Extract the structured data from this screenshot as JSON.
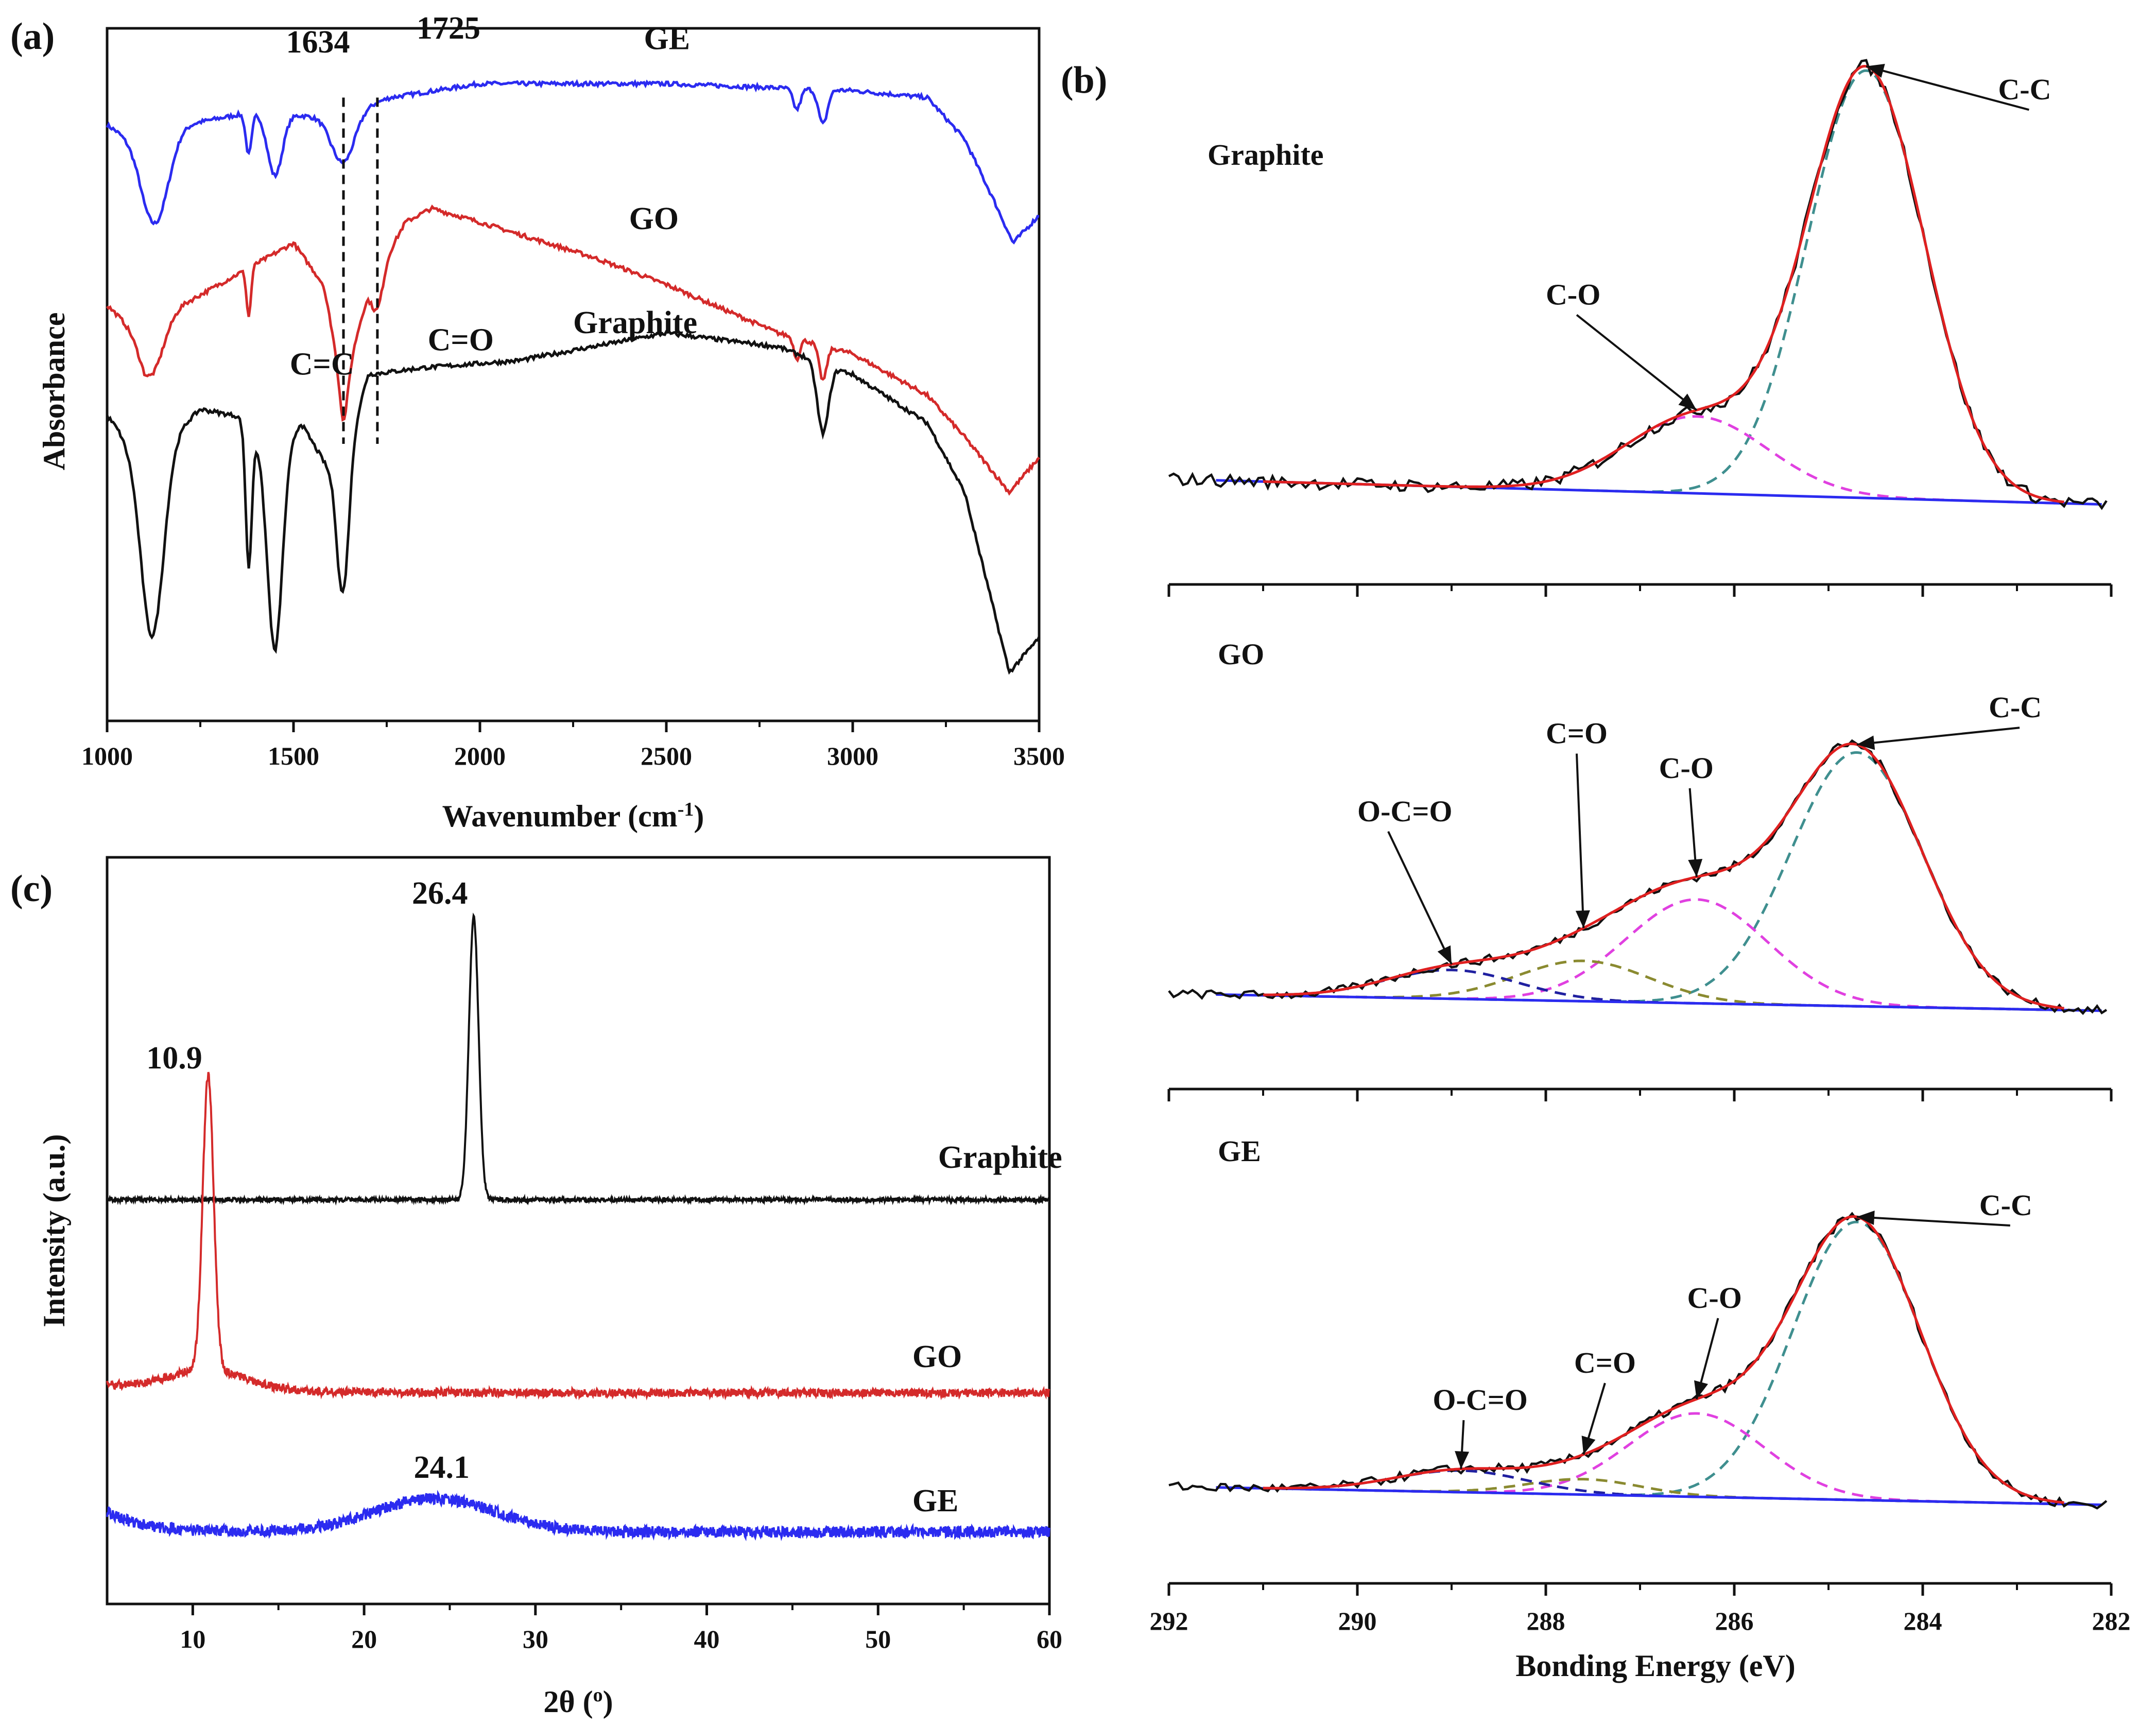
{
  "figure": {
    "panels": [
      "(a)",
      "(b)",
      "(c)"
    ]
  },
  "chart_data": [
    {
      "panel": "(a)",
      "type": "line",
      "xlabel": "Wavenumber (cm",
      "xlabel_sup": "-1",
      "xlabel_close": ")",
      "ylabel": "Absorbance",
      "xlim": [
        1000,
        3500
      ],
      "xticks": [
        "1000",
        "1500",
        "2000",
        "2500",
        "3000",
        "3500"
      ],
      "xtick_values": [
        1000,
        1500,
        2000,
        2500,
        3000,
        3500
      ],
      "series": [
        {
          "name": "GE",
          "color": "#2b2bf0",
          "label_x": 2440,
          "label_y": 0.97,
          "offset": 0.62,
          "baseline": [
            [
              1000,
              0.86
            ],
            [
              1100,
              0.83
            ],
            [
              1200,
              0.86
            ],
            [
              1400,
              0.88
            ],
            [
              1600,
              0.87
            ],
            [
              1760,
              0.9
            ],
            [
              2000,
              0.92
            ],
            [
              2500,
              0.92
            ],
            [
              3000,
              0.91
            ],
            [
              3200,
              0.9
            ],
            [
              3300,
              0.84
            ],
            [
              3380,
              0.75
            ],
            [
              3430,
              0.69
            ],
            [
              3500,
              0.73
            ]
          ],
          "bands": [
            [
              1130,
              0.12,
              35
            ],
            [
              1380,
              0.06,
              8
            ],
            [
              1450,
              0.09,
              20
            ],
            [
              1634,
              0.07,
              30
            ],
            [
              2850,
              0.03,
              10
            ],
            [
              2920,
              0.05,
              12
            ]
          ]
        },
        {
          "name": "GO",
          "color": "#d42a2a",
          "label_x": 2400,
          "label_y": 0.71,
          "offset": 0.31,
          "baseline": [
            [
              1000,
              0.6
            ],
            [
              1100,
              0.55
            ],
            [
              1200,
              0.6
            ],
            [
              1500,
              0.69
            ],
            [
              1580,
              0.63
            ],
            [
              1634,
              0.48
            ],
            [
              1700,
              0.62
            ],
            [
              1800,
              0.72
            ],
            [
              1870,
              0.74
            ],
            [
              2000,
              0.72
            ],
            [
              2300,
              0.67
            ],
            [
              2500,
              0.63
            ],
            [
              2800,
              0.56
            ],
            [
              3000,
              0.53
            ],
            [
              3200,
              0.47
            ],
            [
              3300,
              0.41
            ],
            [
              3420,
              0.33
            ],
            [
              3500,
              0.38
            ]
          ],
          "bands": [
            [
              1120,
              0.06,
              30
            ],
            [
              1380,
              0.07,
              6
            ],
            [
              1634,
              0.05,
              12
            ],
            [
              1725,
              0.05,
              15
            ],
            [
              2850,
              0.03,
              8
            ],
            [
              2920,
              0.05,
              10
            ]
          ]
        },
        {
          "name": "Graphite",
          "color": "#111111",
          "label_x": 2250,
          "label_y": 0.56,
          "offset": 0.0,
          "baseline": [
            [
              1000,
              0.44
            ],
            [
              1050,
              0.41
            ],
            [
              1150,
              0.4
            ],
            [
              1250,
              0.45
            ],
            [
              1350,
              0.44
            ],
            [
              1450,
              0.38
            ],
            [
              1520,
              0.43
            ],
            [
              1620,
              0.34
            ],
            [
              1700,
              0.5
            ],
            [
              1850,
              0.51
            ],
            [
              2100,
              0.52
            ],
            [
              2500,
              0.56
            ],
            [
              2800,
              0.54
            ],
            [
              3000,
              0.5
            ],
            [
              3200,
              0.43
            ],
            [
              3300,
              0.33
            ],
            [
              3420,
              0.07
            ],
            [
              3500,
              0.12
            ]
          ],
          "bands": [
            [
              1120,
              0.28,
              30
            ],
            [
              1380,
              0.2,
              8
            ],
            [
              1450,
              0.28,
              20
            ],
            [
              1634,
              0.18,
              15
            ],
            [
              2920,
              0.1,
              15
            ]
          ]
        }
      ],
      "annotations": [
        {
          "text": "1634",
          "x": 1480,
          "y": 0.965
        },
        {
          "text": "1725",
          "x": 1830,
          "y": 0.985
        },
        {
          "text": "C=C",
          "x": 1490,
          "y": 0.5
        },
        {
          "text": "C=O",
          "x": 1860,
          "y": 0.535
        }
      ],
      "dashed_lines": [
        1634,
        1725
      ]
    },
    {
      "panel": "(b)",
      "type": "line",
      "xlabel": "Bonding Energy (eV)",
      "xlim": [
        292,
        282
      ],
      "xticks": [
        "292",
        "290",
        "288",
        "286",
        "284",
        "282"
      ],
      "xtick_values": [
        292,
        290,
        288,
        286,
        284,
        282
      ],
      "subplots": [
        {
          "name": "Graphite",
          "components": [
            {
              "label": "C-C",
              "center": 284.6,
              "height": 1.0,
              "width": 0.62
            },
            {
              "label": "C-O",
              "center": 286.4,
              "height": 0.18,
              "width": 0.75
            }
          ],
          "annotations": [
            {
              "text": "C-C",
              "x": 283.2,
              "y": 0.96
            },
            {
              "text": "C-O",
              "x": 288.0,
              "y": 0.48
            }
          ]
        },
        {
          "name": "GO",
          "components": [
            {
              "label": "C-C",
              "center": 284.7,
              "height": 0.88,
              "width": 0.7
            },
            {
              "label": "C-O",
              "center": 286.4,
              "height": 0.36,
              "width": 0.75
            },
            {
              "label": "C=O",
              "center": 287.6,
              "height": 0.14,
              "width": 0.7
            },
            {
              "label": "O-C=O",
              "center": 289.0,
              "height": 0.1,
              "width": 0.7
            }
          ],
          "annotations": [
            {
              "text": "C-C",
              "x": 283.3,
              "y": 1.03
            },
            {
              "text": "C-O",
              "x": 286.8,
              "y": 0.82
            },
            {
              "text": "C=O",
              "x": 288.0,
              "y": 0.94
            },
            {
              "text": "O-C=O",
              "x": 290.0,
              "y": 0.67
            }
          ]
        },
        {
          "name": "GE",
          "components": [
            {
              "label": "C-C",
              "center": 284.7,
              "height": 0.9,
              "width": 0.68
            },
            {
              "label": "C-O",
              "center": 286.4,
              "height": 0.27,
              "width": 0.72
            },
            {
              "label": "C=O",
              "center": 287.6,
              "height": 0.05,
              "width": 0.6
            },
            {
              "label": "O-C=O",
              "center": 288.9,
              "height": 0.07,
              "width": 0.7
            }
          ],
          "annotations": [
            {
              "text": "C-C",
              "x": 283.4,
              "y": 0.95
            },
            {
              "text": "C-O",
              "x": 286.5,
              "y": 0.65
            },
            {
              "text": "C=O",
              "x": 287.7,
              "y": 0.44
            },
            {
              "text": "O-C=O",
              "x": 289.2,
              "y": 0.32
            }
          ]
        }
      ],
      "colors": {
        "envelope": "#e02020",
        "raw": "#111111",
        "cc": "#3f8f8f",
        "co": "#e040e0",
        "c_eq_o": "#8a8a30",
        "ocoo": "#2020a0",
        "baseline": "#2b2bf0"
      }
    },
    {
      "panel": "(c)",
      "type": "line",
      "xlabel": "2θ (",
      "xlabel_sup": "o",
      "xlabel_close": ")",
      "ylabel": "Intensity (a.u.)",
      "xlim": [
        5,
        60
      ],
      "xticks": [
        "10",
        "20",
        "30",
        "40",
        "50",
        "60"
      ],
      "xtick_values": [
        10,
        20,
        30,
        40,
        50,
        60
      ],
      "series": [
        {
          "name": "Graphite",
          "color": "#111111",
          "peak_2theta": 26.4,
          "peak_label": "26.4",
          "label_x": 53.5
        },
        {
          "name": "GO",
          "color": "#d42a2a",
          "peak_2theta": 10.9,
          "peak_label": "10.9",
          "label_x": 52.0
        },
        {
          "name": "GE",
          "color": "#2b2bf0",
          "peak_2theta": 24.1,
          "peak_label": "24.1",
          "label_x": 52.0
        }
      ]
    }
  ]
}
